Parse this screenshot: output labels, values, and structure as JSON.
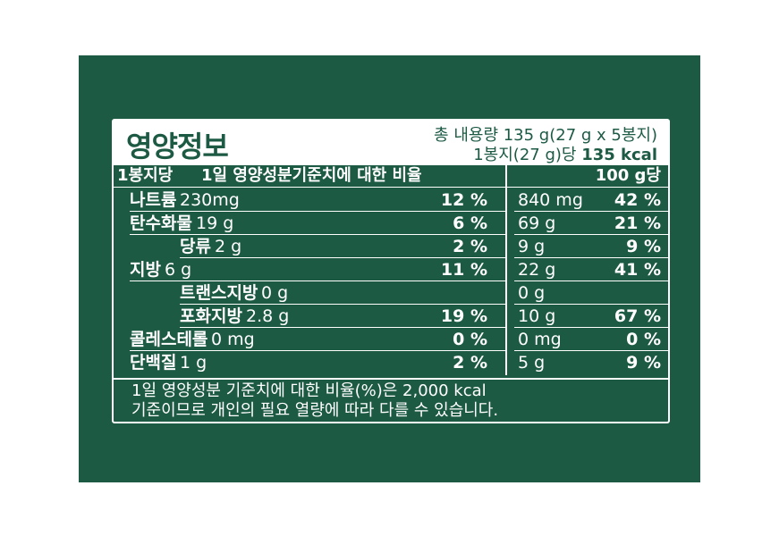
{
  "header": {
    "title": "영양정보",
    "total": "총 내용량 135 g(27 g x 5봉지)",
    "serving": "1봉지(27 g)당",
    "kcal": "135 kcal"
  },
  "table": {
    "columns": [
      "1봉지당",
      "1일 영양성분기준치에 대한 비율",
      "100 g당"
    ],
    "rows": [
      [
        "나트륨",
        "230mg",
        "12 %",
        "840 mg",
        "42 %"
      ],
      [
        "탄수화물",
        "19 g",
        "6 %",
        "69 g",
        "21 %"
      ],
      [
        "당류",
        "2 g",
        "2 %",
        "9 g",
        "9 %"
      ],
      [
        "지방",
        "6 g",
        "11 %",
        "22 g",
        "41 %"
      ],
      [
        "트랜스지방",
        "0 g",
        null,
        "0 g",
        null
      ],
      [
        "포화지방",
        "2.8 g",
        "19 %",
        "10 g",
        "67 %"
      ],
      [
        "콜레스테롤",
        "0 mg",
        "0 %",
        "0 mg",
        "0 %"
      ],
      [
        "단백질",
        "1 g",
        "2 %",
        "5 g",
        "9 %"
      ]
    ]
  },
  "footer": [
    "1일 영양성분 기준치에 대한 비율(%)은 2,000 kcal",
    "기준이므로 개인의 필요 열량에 따라 다를 수 있습니다."
  ]
}
